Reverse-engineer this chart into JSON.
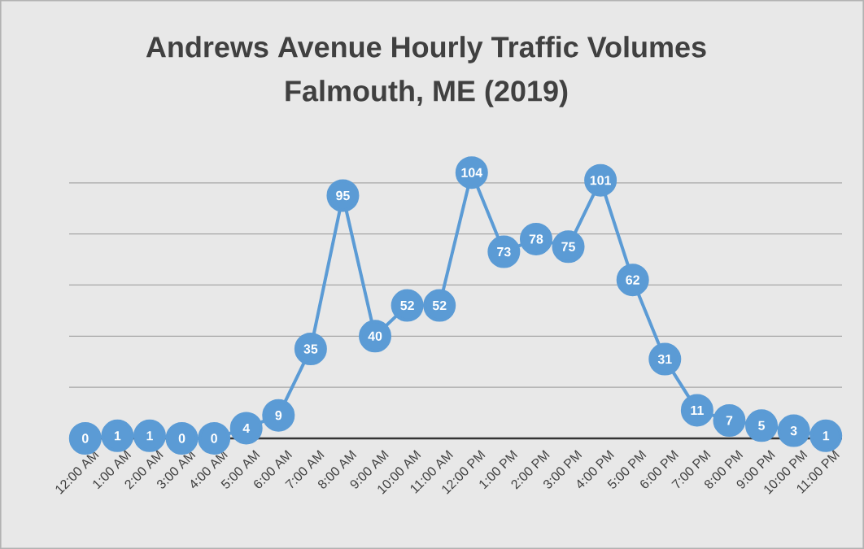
{
  "chart_data": {
    "type": "line",
    "title": "Andrews Avenue Hourly Traffic Volumes",
    "subtitle": "Falmouth, ME (2019)",
    "categories": [
      "12:00 AM",
      "1:00 AM",
      "2:00 AM",
      "3:00 AM",
      "4:00 AM",
      "5:00 AM",
      "6:00 AM",
      "7:00 AM",
      "8:00 AM",
      "9:00 AM",
      "10:00 AM",
      "11:00 AM",
      "12:00 PM",
      "1:00 PM",
      "2:00 PM",
      "3:00 PM",
      "4:00 PM",
      "5:00 PM",
      "6:00 PM",
      "7:00 PM",
      "8:00 PM",
      "9:00 PM",
      "10:00 PM",
      "11:00 PM"
    ],
    "values": [
      0,
      1,
      1,
      0,
      0,
      4,
      9,
      35,
      95,
      40,
      52,
      52,
      104,
      73,
      78,
      75,
      101,
      62,
      31,
      11,
      7,
      5,
      3,
      1
    ],
    "color": "#5b9bd5",
    "marker": "circle",
    "line_style": "solid",
    "data_labels": true,
    "grid": "y",
    "tick_labels": "x"
  }
}
